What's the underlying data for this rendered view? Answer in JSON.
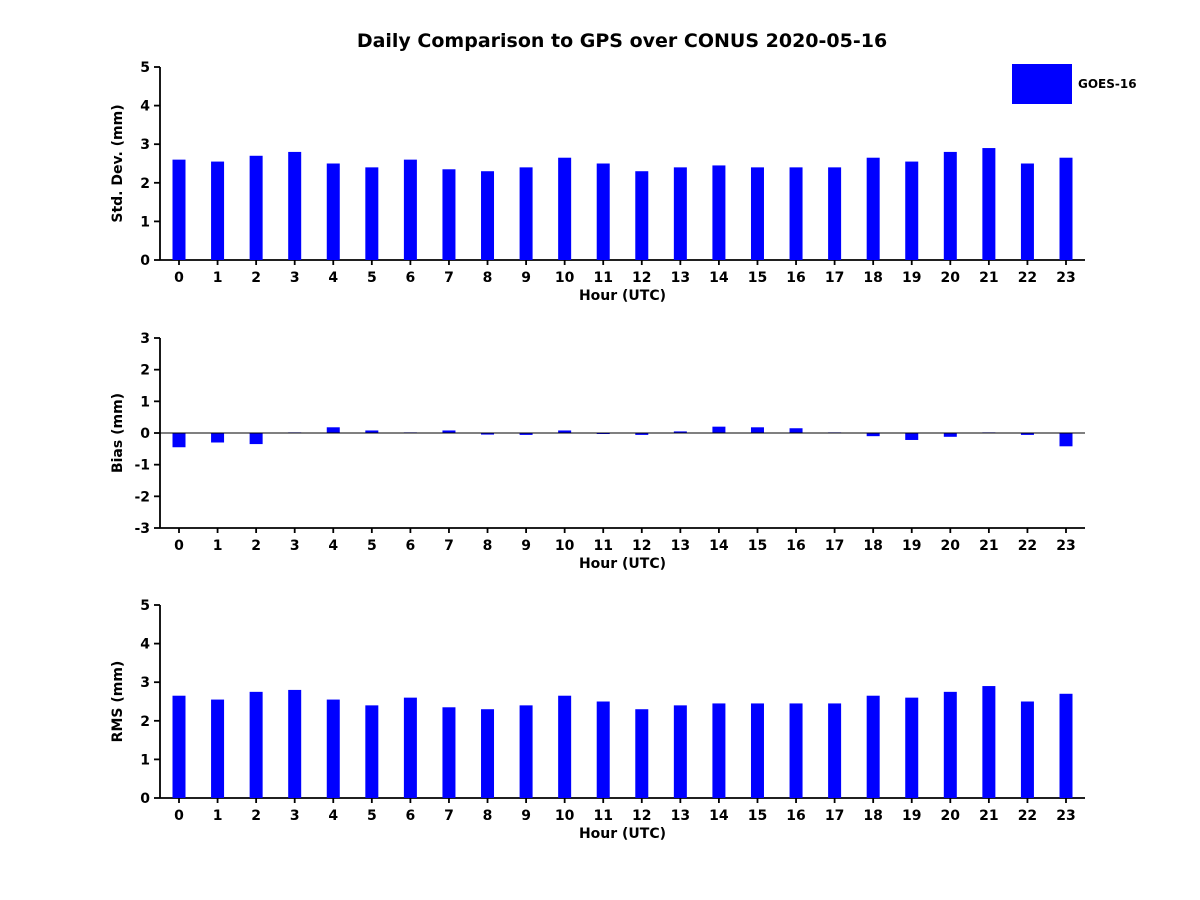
{
  "title": "Daily Comparison to GPS over CONUS 2020-05-16",
  "legend": {
    "label": "GOES-16",
    "color": "#0000FF"
  },
  "bar_color": "#0000FF",
  "chart_data": [
    {
      "type": "bar",
      "ylabel": "Std. Dev. (mm)",
      "xlabel": "Hour (UTC)",
      "ylim": [
        0,
        5
      ],
      "yticks": [
        0,
        1,
        2,
        3,
        4,
        5
      ],
      "grid": false,
      "legend_position": "top-right",
      "categories": [
        "0",
        "1",
        "2",
        "3",
        "4",
        "5",
        "6",
        "7",
        "8",
        "9",
        "10",
        "11",
        "12",
        "13",
        "14",
        "15",
        "16",
        "17",
        "18",
        "19",
        "20",
        "21",
        "22",
        "23"
      ],
      "values": [
        2.6,
        2.55,
        2.7,
        2.8,
        2.5,
        2.4,
        2.6,
        2.35,
        2.3,
        2.4,
        2.65,
        2.5,
        2.3,
        2.4,
        2.45,
        2.4,
        2.4,
        2.4,
        2.65,
        2.55,
        2.8,
        2.9,
        2.5,
        2.65
      ]
    },
    {
      "type": "bar",
      "ylabel": "Bias (mm)",
      "xlabel": "Hour (UTC)",
      "ylim": [
        -3,
        3
      ],
      "yticks": [
        -3,
        -2,
        -1,
        0,
        1,
        2,
        3
      ],
      "grid": false,
      "zero_baseline": true,
      "categories": [
        "0",
        "1",
        "2",
        "3",
        "4",
        "5",
        "6",
        "7",
        "8",
        "9",
        "10",
        "11",
        "12",
        "13",
        "14",
        "15",
        "16",
        "17",
        "18",
        "19",
        "20",
        "21",
        "22",
        "23"
      ],
      "values": [
        -0.45,
        -0.3,
        -0.35,
        0.02,
        0.18,
        0.08,
        0.02,
        0.08,
        -0.05,
        -0.06,
        0.08,
        -0.03,
        -0.06,
        0.05,
        0.2,
        0.18,
        0.15,
        0.02,
        -0.1,
        -0.22,
        -0.12,
        0.02,
        -0.06,
        -0.42
      ]
    },
    {
      "type": "bar",
      "ylabel": "RMS (mm)",
      "xlabel": "Hour (UTC)",
      "ylim": [
        0,
        5
      ],
      "yticks": [
        0,
        1,
        2,
        3,
        4,
        5
      ],
      "grid": false,
      "categories": [
        "0",
        "1",
        "2",
        "3",
        "4",
        "5",
        "6",
        "7",
        "8",
        "9",
        "10",
        "11",
        "12",
        "13",
        "14",
        "15",
        "16",
        "17",
        "18",
        "19",
        "20",
        "21",
        "22",
        "23"
      ],
      "values": [
        2.65,
        2.55,
        2.75,
        2.8,
        2.55,
        2.4,
        2.6,
        2.35,
        2.3,
        2.4,
        2.65,
        2.5,
        2.3,
        2.4,
        2.45,
        2.45,
        2.45,
        2.45,
        2.65,
        2.6,
        2.75,
        2.9,
        2.5,
        2.7
      ]
    }
  ]
}
